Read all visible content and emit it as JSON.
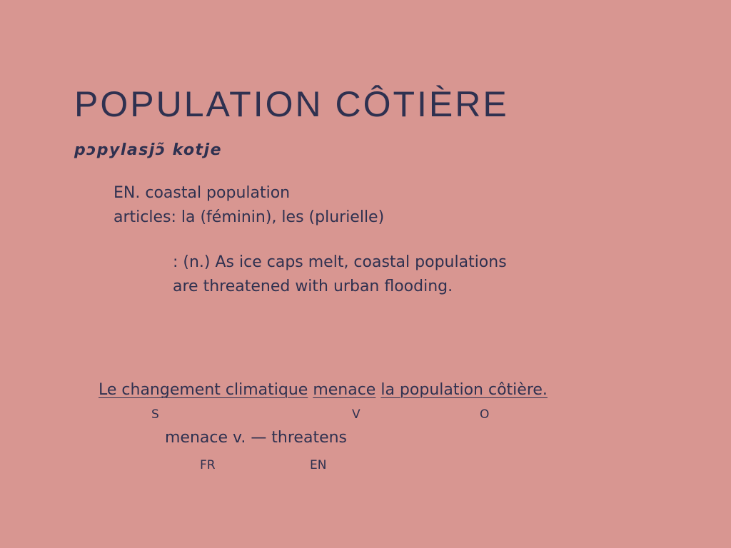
{
  "heading": {
    "word": "POPULATION CÔTIÈRE",
    "pronunciation": "pɔpylasjɔ̃ kotje"
  },
  "details": {
    "translation": "EN. coastal population",
    "articles": "articles: la (féminin), les (plurielle)"
  },
  "example": {
    "line1": ": (n.) As ice caps melt, coastal populations",
    "line2": "are threatened with urban flooding."
  },
  "sentence": {
    "subject": "Le changement climatique",
    "verb": "menace",
    "object": "la population côtière.",
    "subject_label": "S",
    "verb_label": "V",
    "object_label": "O"
  },
  "gloss": {
    "text": "menace v. — threatens",
    "fr_label": "FR",
    "en_label": "EN"
  }
}
